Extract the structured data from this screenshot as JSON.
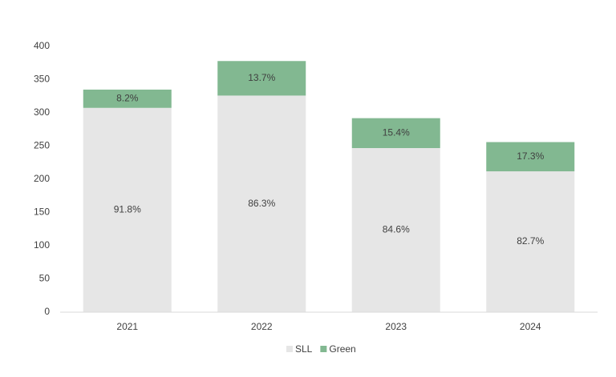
{
  "chart_data": {
    "type": "stacked_bar",
    "categories": [
      "2021",
      "2022",
      "2023",
      "2024"
    ],
    "series": [
      {
        "name": "SLL",
        "color": "#e6e6e6",
        "values": [
          307.5,
          326,
          247,
          212
        ],
        "segment_labels": [
          "91.8%",
          "86.3%",
          "84.6%",
          "82.7%"
        ]
      },
      {
        "name": "Green",
        "color": "#82b891",
        "values": [
          27.5,
          52,
          45,
          44
        ],
        "segment_labels": [
          "8.2%",
          "13.7%",
          "15.4%",
          "17.3%"
        ]
      }
    ],
    "ylim": [
      0,
      400
    ],
    "yticks": [
      0,
      50,
      100,
      150,
      200,
      250,
      300,
      350,
      400
    ],
    "grid": false,
    "legend": "bottom"
  }
}
